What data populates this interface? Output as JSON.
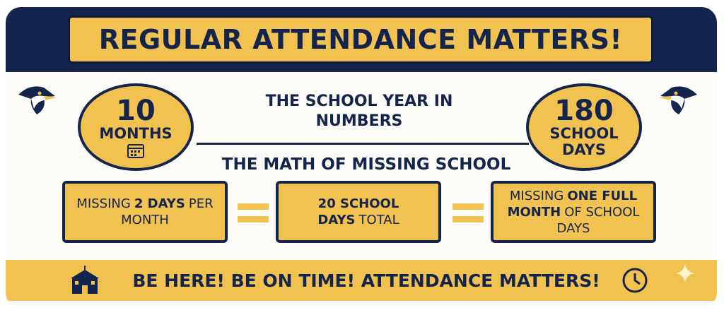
{
  "header": {
    "title": "REGULAR ATTENDANCE MATTERS!"
  },
  "stats": {
    "left": {
      "number": "10",
      "unit": "MONTHS"
    },
    "center": "THE SCHOOL YEAR IN NUMBERS",
    "right": {
      "number": "180",
      "unit": "SCHOOL DAYS"
    }
  },
  "math": {
    "heading": "THE MATH OF MISSING SCHOOL",
    "boxes": [
      [
        {
          "text": "MISSING",
          "bold": false
        },
        {
          "text": "2 DAYS",
          "bold": true
        },
        {
          "text": "PER MONTH",
          "bold": false
        }
      ],
      [
        {
          "text": "20 SCHOOL DAYS",
          "bold": true
        },
        {
          "text": "TOTAL",
          "bold": false
        }
      ],
      [
        {
          "text": "MISSING",
          "bold": false
        },
        {
          "text": "ONE FULL MONTH",
          "bold": true
        },
        {
          "text": "OF SCHOOL DAYS",
          "bold": false
        }
      ]
    ]
  },
  "footer": {
    "text": "BE HERE! BE ON TIME! ATTENDANCE MATTERS!"
  }
}
